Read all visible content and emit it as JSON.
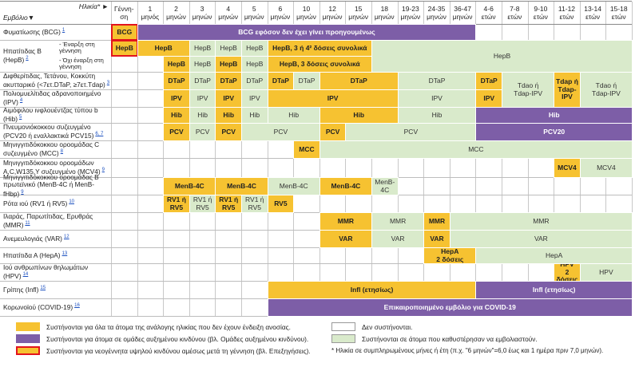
{
  "header": {
    "age_label": "Ηλικία* ►",
    "vaccine_label": "Εμβόλιο▼",
    "columns": [
      [
        "Γέννη-",
        "ση"
      ],
      [
        "1",
        "μηνός"
      ],
      [
        "2",
        "μηνών"
      ],
      [
        "3",
        "μηνών"
      ],
      [
        "4",
        "μηνών"
      ],
      [
        "5",
        "μηνών"
      ],
      [
        "6",
        "μηνών"
      ],
      [
        "10",
        "μηνών"
      ],
      [
        "12",
        "μηνών"
      ],
      [
        "15",
        "μηνών"
      ],
      [
        "18",
        "μηνών"
      ],
      [
        "19-23",
        "μηνών"
      ],
      [
        "24-35",
        "μηνών"
      ],
      [
        "36-47",
        "μηνών"
      ],
      [
        "4-6",
        "ετών"
      ],
      [
        "7-8",
        "ετών"
      ],
      [
        "9-10",
        "ετών"
      ],
      [
        "11-12",
        "ετών"
      ],
      [
        "13-14",
        "ετών"
      ],
      [
        "15-18",
        "ετών"
      ]
    ]
  },
  "rows": [
    {
      "label": "Φυματίωσης (BCG)",
      "note": "1",
      "cells": [
        "BCG",
        "BCG εφόσον δεν έχει γίνει προηγουμένως"
      ]
    },
    {
      "label": "Ηπατίτιδας Β (HepB)",
      "note": "2",
      "sublabels": [
        "- Έναρξη στη γέννηση",
        "- Όχι έναρξη στη γέννηση"
      ],
      "cells": [
        "HepB",
        "HepB",
        "HepB",
        "HepB",
        "HepB",
        "HepB, 3 ή 4² δόσεις συνολικά",
        "HepB",
        "HepB",
        "HepB",
        "HepB",
        "HepB, 3 δόσεις συνολικά",
        "HepB"
      ]
    },
    {
      "label": "Διφθερίτιδας, Τετάνου, Κοκκύτη ακυτταρικό (<7ετ.DTaP, ≥7ετ.Tdap)",
      "note": "3",
      "cells": [
        "DTaP",
        "DTaP",
        "DTaP",
        "DTaP",
        "DTaP",
        "DTaP",
        "DTaP",
        "DTaP",
        "DTaP",
        [
          "Tdao ή",
          "Tdap-IPV"
        ],
        [
          "Tdap ή",
          "Tdap-",
          "IPV"
        ],
        [
          "Tdao ή",
          "Tdap-IPV"
        ]
      ]
    },
    {
      "label": "Πολιομυελίτιδας αδρανοποιημένο (IPV)",
      "note": "4",
      "cells": [
        "IPV",
        "IPV",
        "IPV",
        "IPV",
        "IPV",
        "IPV",
        "IPV"
      ]
    },
    {
      "label": "Αιμόφιλου ινφλουέντζας τύπου b (Hib)",
      "note": "5",
      "cells": [
        "Hib",
        "Hib",
        "Hib",
        "Hib",
        "Hib",
        "Hib",
        "Hib",
        "Hib"
      ]
    },
    {
      "label": "Πνευμονιόκοκκου συζευγμένο (PCV20 ή εναλλακτικά PCV15)",
      "note": "6, 7",
      "cells": [
        "PCV",
        "PCV",
        "PCV",
        "PCV",
        "PCV",
        "PCV",
        "PCV20"
      ]
    },
    {
      "label": "Μηνιγγιτιδόκοκκου οροομάδας C συζευγμένο (MCC)",
      "note": "8",
      "cells": [
        "MCC",
        "MCC"
      ]
    },
    {
      "label": "Μηνιγγιτιδόκοκκου οροομάδων A,C,W135,Y συζευγμένο (MCV4)",
      "note": "9",
      "cells": [
        "MCV4",
        "MCV4"
      ]
    },
    {
      "label": "Μηνιγγιτιδόκοκκου οροομάδας Β πρωτεϊνικό (MenB-4C ή MenB-fHbp)",
      "note": "9",
      "cells": [
        "MenB-4C",
        "MenB-4C",
        "MenB-4C",
        "MenB-4C",
        [
          "MenB-",
          "4C"
        ]
      ]
    },
    {
      "label": "Ρότα ιού (RV1 ή RV5)",
      "note": "10",
      "cells": [
        [
          "RV1 ή",
          "RV5"
        ],
        [
          "RV1 ή",
          "RV5"
        ],
        [
          "RV1 ή",
          "RV5"
        ],
        [
          "RV1 ή",
          "RV5"
        ],
        "RV5"
      ]
    },
    {
      "label": "Ιλαράς, Παρωτίτιδας, Ερυθράς (MMR)",
      "note": "11",
      "cells": [
        "MMR",
        "MMR",
        "MMR",
        "MMR"
      ]
    },
    {
      "label": "Ανεμευλογιάς (VAR)",
      "note": "12",
      "cells": [
        "VAR",
        "VAR",
        "VAR",
        "VAR"
      ]
    },
    {
      "label": "Ηπατίτιδα Α (HepA)",
      "note": "13",
      "cells": [
        [
          "HepA",
          "2 δόσεις"
        ],
        "HepA"
      ]
    },
    {
      "label": "Ιού ανθρωπίνων θηλωμάτων (HPV)",
      "note": "14",
      "cells": [
        [
          "HPV",
          "2 δόσεις"
        ],
        "HPV"
      ]
    },
    {
      "label": "Γρίπης (Infl)",
      "note": "15",
      "cells": [
        "Infl (ετησίως)",
        "Infl (ετησίως)"
      ]
    },
    {
      "label": "Κορωνοϊού (COVID-19)",
      "note": "16",
      "cells": [
        "Επικαιροποιημένο εμβόλιο για COVID-19"
      ]
    }
  ],
  "legend": {
    "items": [
      "Συστήνονται για όλα τα άτομα της ανάλογης ηλικίας που δεν έχουν ένδειξη ανοσίας.",
      "Συστήνονται για άτομα σε ομάδες αυξημένου κινδύνου (βλ. Ομάδες αυξημένου κινδύνου).",
      "Συστήνονται για νεογέννητα υψηλού κινδύνου αμέσως μετά τη γέννηση (βλ. Επεξηγήσεις).",
      "Δεν συστήνονται.",
      "Συστήνονται σε άτομα που καθυστέρησαν να εμβολιαστούν."
    ],
    "footnote": "* Ηλικία σε συμπληρωμένους μήνες ή έτη (π.χ. \"6 μηνών\"=6,0 έως και 1 ημέρα πριν 7,0 μηνών)."
  }
}
